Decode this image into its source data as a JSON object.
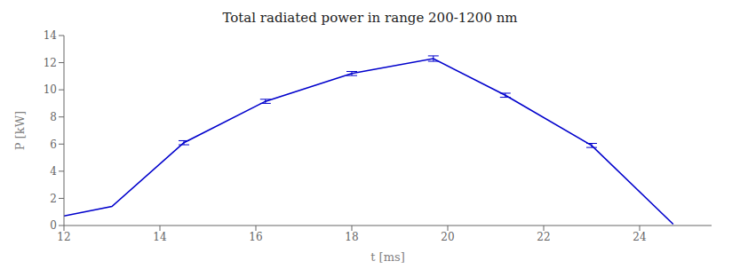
{
  "chart_data": {
    "type": "line",
    "title": "Total radiated power in range 200-1200 nm",
    "xlabel": "t [ms]",
    "ylabel": "P [kW]",
    "x": [
      12.0,
      13.0,
      14.5,
      16.2,
      18.0,
      19.7,
      21.2,
      23.0,
      24.7
    ],
    "values": [
      0.7,
      1.4,
      6.1,
      9.15,
      11.2,
      12.3,
      9.6,
      5.9,
      0.1
    ],
    "yerr": [
      0.0,
      0.0,
      0.15,
      0.15,
      0.15,
      0.2,
      0.15,
      0.15,
      0.0
    ],
    "color": "#0000cc",
    "xlim": [
      12,
      25.5
    ],
    "ylim": [
      0,
      14
    ],
    "xticks": [
      12,
      14,
      16,
      18,
      20,
      22,
      24
    ],
    "yticks": [
      0,
      2,
      4,
      6,
      8,
      10,
      12,
      14
    ],
    "grid": false,
    "line_style": "solid"
  }
}
